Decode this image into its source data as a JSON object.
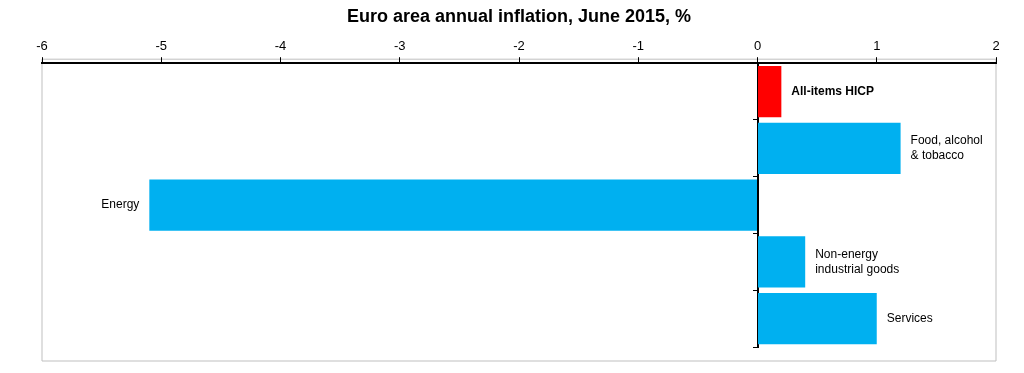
{
  "chart_data": {
    "type": "bar",
    "orientation": "horizontal",
    "title": "Euro area annual inflation, June 2015, %",
    "categories": [
      "All-items HICP",
      "Food, alcohol & tobacco",
      "Energy",
      "Non-energy industrial goods",
      "Services"
    ],
    "values": [
      0.2,
      1.2,
      -5.1,
      0.4,
      1.0
    ],
    "colors": [
      "#ff0000",
      "#00b0f0",
      "#00b0f0",
      "#00b0f0",
      "#00b0f0"
    ],
    "xlim": [
      -6,
      2
    ],
    "xticks": [
      -6,
      -5,
      -4,
      -3,
      -2,
      -1,
      0,
      1,
      2
    ]
  }
}
